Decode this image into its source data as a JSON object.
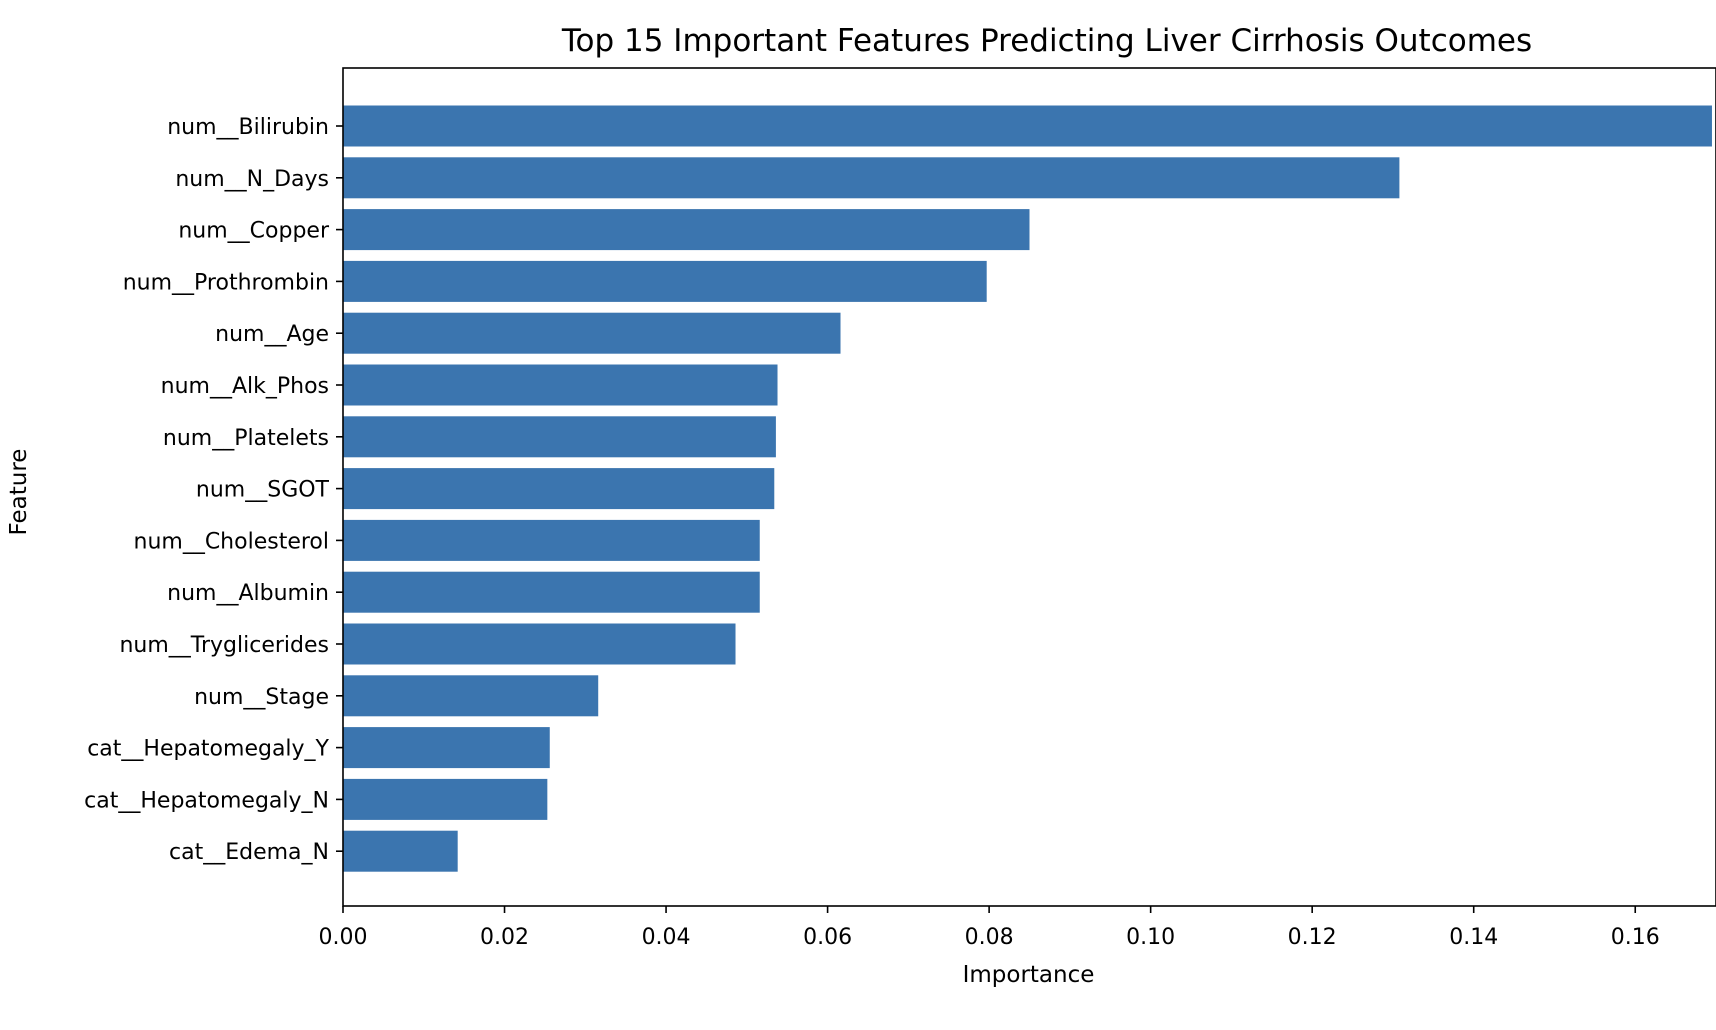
{
  "chart_data": {
    "type": "bar",
    "orientation": "horizontal",
    "title": "Top 15 Important Features Predicting Liver Cirrhosis Outcomes",
    "xlabel": "Importance",
    "ylabel": "Feature",
    "xlim": [
      0,
      0.17
    ],
    "x_ticks": [
      "0.00",
      "0.02",
      "0.04",
      "0.06",
      "0.08",
      "0.10",
      "0.12",
      "0.14",
      "0.16"
    ],
    "x_tick_values": [
      0,
      0.02,
      0.04,
      0.06,
      0.08,
      0.1,
      0.12,
      0.14,
      0.16
    ],
    "grid": false,
    "bar_color": "#3b75af",
    "categories": [
      "num__Bilirubin",
      "num__N_Days",
      "num__Copper",
      "num__Prothrombin",
      "num__Age",
      "num__Alk_Phos",
      "num__Platelets",
      "num__SGOT",
      "num__Cholesterol",
      "num__Albumin",
      "num__Tryglicerides",
      "num__Stage",
      "cat__Hepatomegaly_Y",
      "cat__Hepatomegaly_N",
      "cat__Edema_N"
    ],
    "values": [
      0.1695,
      0.1308,
      0.085,
      0.0797,
      0.0616,
      0.0538,
      0.0536,
      0.0534,
      0.0516,
      0.0516,
      0.0486,
      0.0316,
      0.0256,
      0.0253,
      0.0142
    ]
  }
}
